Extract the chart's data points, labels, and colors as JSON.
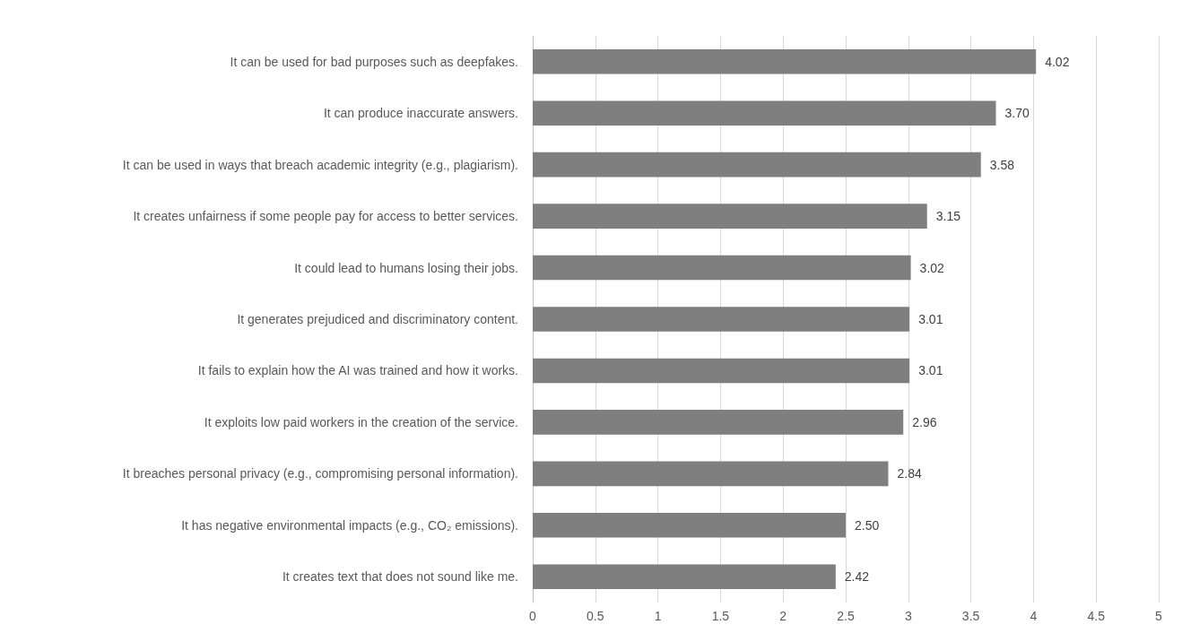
{
  "chart_data": {
    "type": "bar",
    "orientation": "horizontal",
    "categories": [
      "It can be used for bad purposes such as deepfakes.",
      "It can produce inaccurate answers.",
      "It can be used in ways that breach academic integrity (e.g., plagiarism).",
      "It creates unfairness if some people pay for access to better services.",
      "It could lead to humans losing their jobs.",
      "It generates prejudiced and discriminatory content.",
      "It fails to explain how the AI was trained and how it works.",
      "It exploits low paid workers in the creation of the service.",
      "It breaches personal privacy (e.g., compromising personal information).",
      "It has negative environmental impacts (e.g., CO₂ emissions).",
      "It creates text that does not sound like me."
    ],
    "values": [
      4.02,
      3.7,
      3.58,
      3.15,
      3.02,
      3.01,
      3.01,
      2.96,
      2.84,
      2.5,
      2.42
    ],
    "value_labels": [
      "4.02",
      "3.70",
      "3.58",
      "3.15",
      "3.02",
      "3.01",
      "3.01",
      "2.96",
      "2.84",
      "2.50",
      "2.42"
    ],
    "color": "#7f7f7f",
    "xlim": [
      0,
      5
    ],
    "xticks": [
      0,
      0.5,
      1,
      1.5,
      2,
      2.5,
      3,
      3.5,
      4,
      4.5,
      5
    ],
    "grid": "x"
  }
}
